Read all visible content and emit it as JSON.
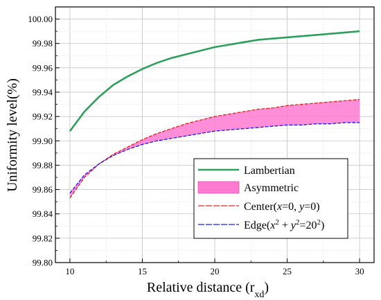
{
  "chart_data": {
    "type": "line",
    "xlabel": "Relative distance (r",
    "xlabel_sub": "xd",
    "xlabel_end": ")",
    "ylabel": "Uniformity level(%)",
    "xlim": [
      9,
      31
    ],
    "ylim": [
      99.8,
      100.01
    ],
    "xticks": [
      10,
      15,
      20,
      25,
      30
    ],
    "yticks": [
      "99.80",
      "99.82",
      "99.84",
      "99.86",
      "99.88",
      "99.90",
      "99.92",
      "99.94",
      "99.96",
      "99.98",
      "100.00"
    ],
    "grid": true,
    "legend_position": "bottom-right",
    "x": [
      10,
      11,
      12,
      13,
      14,
      15,
      16,
      17,
      18,
      19,
      20,
      21,
      22,
      23,
      24,
      25,
      26,
      27,
      28,
      29,
      30
    ],
    "series": [
      {
        "name": "Lambertian",
        "key": "lambertian",
        "color": "#2ca05a",
        "values": [
          99.908,
          99.924,
          99.936,
          99.946,
          99.953,
          99.959,
          99.964,
          99.968,
          99.971,
          99.974,
          99.977,
          99.979,
          99.981,
          99.983,
          99.984,
          99.985,
          99.986,
          99.987,
          99.988,
          99.989,
          99.99
        ]
      },
      {
        "name": "Center(x=0, y=0)",
        "key": "center",
        "color": "#e8201e",
        "values": [
          99.853,
          99.87,
          99.881,
          99.889,
          99.895,
          99.901,
          99.906,
          99.91,
          99.914,
          99.917,
          99.92,
          99.922,
          99.924,
          99.926,
          99.927,
          99.929,
          99.93,
          99.931,
          99.932,
          99.933,
          99.934
        ]
      },
      {
        "name": "Edge(x²+y²=20²)",
        "key": "edge",
        "color": "#1a1aee",
        "values": [
          99.857,
          99.872,
          99.881,
          99.888,
          99.893,
          99.897,
          99.9,
          99.902,
          99.904,
          99.906,
          99.908,
          99.909,
          99.91,
          99.911,
          99.912,
          99.913,
          99.913,
          99.914,
          99.914,
          99.915,
          99.915
        ]
      }
    ],
    "fill": {
      "name": "Asymmetric",
      "color": "#ff7ad1",
      "between": [
        "center",
        "edge"
      ]
    }
  },
  "legend": {
    "lambertian": "Lambertian",
    "asymmetric": "Asymmetric",
    "center_pre": "Center(",
    "center_x": "x",
    "center_mid": "=0, ",
    "center_y": "y",
    "center_post": "=0)",
    "edge_pre": "Edge(",
    "edge_x": "x",
    "edge_sup1": "2",
    "edge_plus": " + ",
    "edge_y": "y",
    "edge_sup2": "2",
    "edge_eq": "=20",
    "edge_sup3": "2",
    "edge_post": ")"
  }
}
